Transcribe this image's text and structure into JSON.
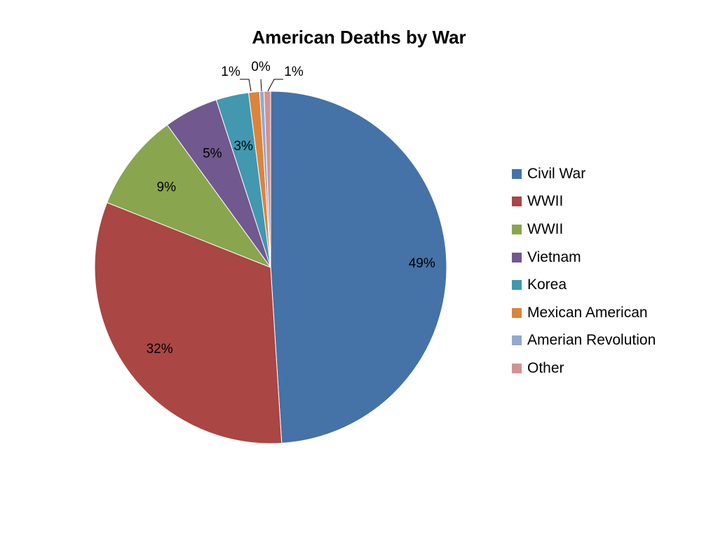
{
  "chart_data": {
    "type": "pie",
    "title": "American Deaths by War",
    "slices": [
      {
        "label": "Civil War",
        "value": 49,
        "display": "49%",
        "color": "#4572A7"
      },
      {
        "label": "WWII",
        "value": 32,
        "display": "32%",
        "color": "#AA4643"
      },
      {
        "label": "WWII",
        "value": 9,
        "display": "9%",
        "color": "#89A54E"
      },
      {
        "label": "Vietnam",
        "value": 5,
        "display": "5%",
        "color": "#71588F"
      },
      {
        "label": "Korea",
        "value": 3,
        "display": "3%",
        "color": "#4198AF"
      },
      {
        "label": "Mexican American",
        "value": 1,
        "display": "1%",
        "color": "#DB843D"
      },
      {
        "label": "Amerian Revolution",
        "value": 0.4,
        "display": "0%",
        "color": "#93A9CF"
      },
      {
        "label": "Other",
        "value": 0.6,
        "display": "1%",
        "color": "#D19392"
      }
    ],
    "legend_position": "right"
  }
}
